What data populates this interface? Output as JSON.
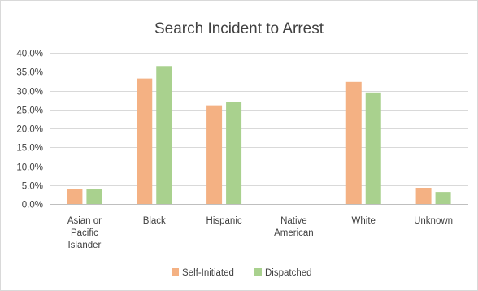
{
  "chart_data": {
    "type": "bar",
    "title": "Search Incident to Arrest",
    "categories": [
      [
        "Asian or",
        "Pacific",
        "Islander"
      ],
      [
        "Black"
      ],
      [
        "Hispanic"
      ],
      [
        "Native",
        "American"
      ],
      [
        "White"
      ],
      [
        "Unknown"
      ]
    ],
    "series": [
      {
        "name": "Self-Initiated",
        "color": "#f4b183",
        "values": [
          4.0,
          33.2,
          26.1,
          0.0,
          32.3,
          4.3
        ]
      },
      {
        "name": "Dispatched",
        "color": "#a9d18e",
        "values": [
          4.0,
          36.5,
          26.9,
          0.0,
          29.5,
          3.2
        ]
      }
    ],
    "ylim": [
      0,
      40
    ],
    "yticks": [
      "0.0%",
      "5.0%",
      "10.0%",
      "15.0%",
      "20.0%",
      "25.0%",
      "30.0%",
      "35.0%",
      "40.0%"
    ],
    "ytick_values": [
      0,
      5,
      10,
      15,
      20,
      25,
      30,
      35,
      40
    ],
    "xlabel": "",
    "ylabel": "",
    "grid": true,
    "legend_position": "bottom"
  }
}
